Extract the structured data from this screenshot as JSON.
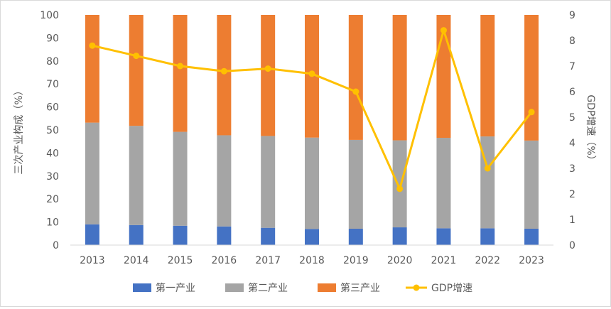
{
  "chart_data": {
    "type": "bar",
    "stacked": true,
    "categories": [
      "2013",
      "2014",
      "2015",
      "2016",
      "2017",
      "2018",
      "2019",
      "2020",
      "2021",
      "2022",
      "2023"
    ],
    "series": [
      {
        "name": "第一产业",
        "type": "bar",
        "axis": "left",
        "color": "#4472C4",
        "values": [
          9.0,
          8.7,
          8.4,
          8.1,
          7.5,
          7.0,
          7.1,
          7.7,
          7.3,
          7.3,
          7.1
        ]
      },
      {
        "name": "第二产业",
        "type": "bar",
        "axis": "left",
        "color": "#A5A5A5",
        "values": [
          44.2,
          43.1,
          40.8,
          39.6,
          39.9,
          39.7,
          38.6,
          37.8,
          39.3,
          39.9,
          38.3
        ]
      },
      {
        "name": "第三产业",
        "type": "bar",
        "axis": "left",
        "color": "#ED7D31",
        "values": [
          46.8,
          48.2,
          50.8,
          52.3,
          52.6,
          53.3,
          54.3,
          54.5,
          53.4,
          52.8,
          54.6
        ]
      },
      {
        "name": "GDP增速",
        "type": "line",
        "axis": "right",
        "color": "#FFC000",
        "values": [
          7.8,
          7.4,
          7.0,
          6.8,
          6.9,
          6.7,
          6.0,
          2.2,
          8.4,
          3.0,
          5.2
        ]
      }
    ],
    "ylabel": "三次产业构成（%）",
    "ylabel_right": "GDP增速（%）",
    "ylim": [
      0,
      100
    ],
    "yticks": [
      "0",
      "10",
      "20",
      "30",
      "40",
      "50",
      "60",
      "70",
      "80",
      "90",
      "100"
    ],
    "ylim_right": [
      0,
      9
    ],
    "yticks_right": [
      "0",
      "1",
      "2",
      "3",
      "4",
      "5",
      "6",
      "7",
      "8",
      "9"
    ],
    "grid": false,
    "legend": "bottom"
  }
}
